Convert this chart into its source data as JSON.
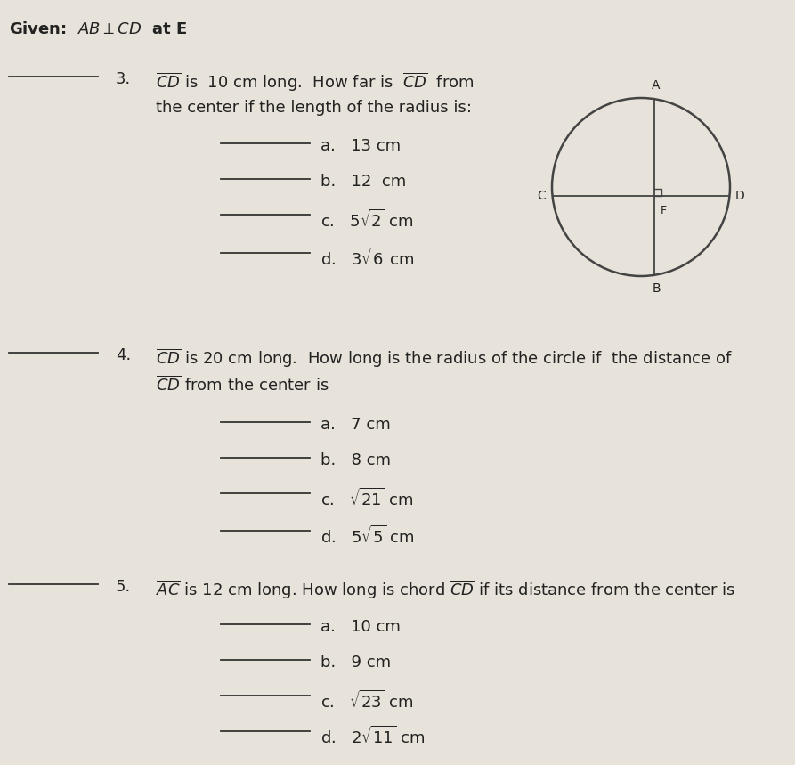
{
  "bg_color": "#e8e3da",
  "text_color": "#222222",
  "given_text": "Given:  $\\overline{AB} \\perp \\overline{CD}$  at E",
  "q3_number": "3.",
  "q3_line1": "$\\overline{CD}$ is  10 cm long.  How far is  $\\overline{CD}$  from",
  "q3_line2": "the center if the length of the radius is:",
  "q3_items": [
    "a.   13 cm",
    "b.   12  cm",
    "c.   $5\\sqrt{2}$ cm",
    "d.   $3\\sqrt{6}$ cm"
  ],
  "q4_number": "4.",
  "q4_line1": "$\\overline{CD}$ is 20 cm long.  How long is the radius of the circle if  the distance of",
  "q4_line2": "$\\overline{CD}$ from the center is",
  "q4_items": [
    "a.   7 cm",
    "b.   8 cm",
    "c.   $\\sqrt{21}$ cm",
    "d.   $5\\sqrt{5}$ cm"
  ],
  "q5_number": "5.",
  "q5_line1": "$\\overline{AC}$ is 12 cm long. How long is chord $\\overline{CD}$ if its distance from the center is",
  "q5_items": [
    "a.   10 cm",
    "b.   9 cm",
    "c.   $\\sqrt{23}$ cm",
    "d.   $2\\sqrt{11}$ cm"
  ],
  "font_size_main": 13,
  "font_size_given": 13,
  "line_color": "#333333",
  "circle_line_color": "#444444"
}
